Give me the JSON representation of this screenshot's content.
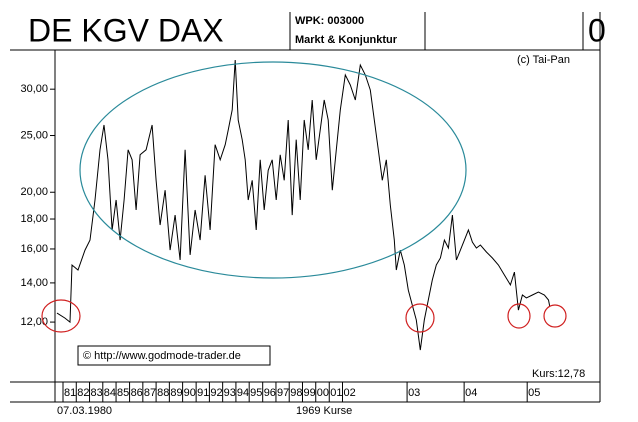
{
  "chart_data": {
    "type": "line",
    "title": "DE KGV DAX",
    "wpk": "WPK: 003000",
    "group": "Markt & Konjunktur",
    "header_fragment": "0",
    "copyright": "(c) Tai-Pan",
    "watermark": "© http://www.godmode-trader.de",
    "last_price": "Kurs:12,78",
    "start_date": "07.03.1980",
    "count_label": "1969 Kurse",
    "color": "#000000",
    "log_scale": true,
    "xlim": [
      0,
      2170
    ],
    "ylim": [
      9.48,
      35.0
    ],
    "yticks": [
      {
        "value": 12,
        "label": "12,00"
      },
      {
        "value": 14,
        "label": "14,00"
      },
      {
        "value": 16,
        "label": "16,00"
      },
      {
        "value": 18,
        "label": "18,00"
      },
      {
        "value": 20,
        "label": "20,00"
      },
      {
        "value": 25,
        "label": "25,00"
      },
      {
        "value": 30,
        "label": "30,00"
      }
    ],
    "xticks": [
      {
        "value": 36,
        "label": "81"
      },
      {
        "value": 89,
        "label": "82"
      },
      {
        "value": 142,
        "label": "83"
      },
      {
        "value": 195,
        "label": "84"
      },
      {
        "value": 248,
        "label": "85"
      },
      {
        "value": 302,
        "label": "86"
      },
      {
        "value": 355,
        "label": "87"
      },
      {
        "value": 408,
        "label": "88"
      },
      {
        "value": 461,
        "label": "89"
      },
      {
        "value": 514,
        "label": "90"
      },
      {
        "value": 568,
        "label": "91"
      },
      {
        "value": 621,
        "label": "92"
      },
      {
        "value": 674,
        "label": "93"
      },
      {
        "value": 727,
        "label": "94"
      },
      {
        "value": 780,
        "label": "95"
      },
      {
        "value": 834,
        "label": "96"
      },
      {
        "value": 887,
        "label": "97"
      },
      {
        "value": 940,
        "label": "98"
      },
      {
        "value": 993,
        "label": "99"
      },
      {
        "value": 1046,
        "label": "00"
      },
      {
        "value": 1100,
        "label": "01"
      },
      {
        "value": 1153,
        "label": "02"
      },
      {
        "value": 1411,
        "label": "03"
      },
      {
        "value": 1639,
        "label": "04"
      },
      {
        "value": 1891,
        "label": "05"
      }
    ],
    "x": [
      0,
      32,
      52,
      60,
      84,
      112,
      132,
      152,
      172,
      188,
      204,
      220,
      236,
      252,
      268,
      284,
      300,
      316,
      332,
      356,
      380,
      396,
      412,
      432,
      452,
      472,
      492,
      512,
      532,
      552,
      572,
      592,
      612,
      632,
      652,
      672,
      684,
      700,
      712,
      724,
      740,
      752,
      764,
      780,
      796,
      812,
      828,
      844,
      860,
      876,
      892,
      908,
      924,
      940,
      956,
      972,
      988,
      1004,
      1020,
      1036,
      1052,
      1068,
      1084,
      1100,
      1116,
      1132,
      1152,
      1172,
      1192,
      1212,
      1232,
      1252,
      1268,
      1284,
      1300,
      1316,
      1332,
      1348,
      1356,
      1372,
      1388,
      1404,
      1420,
      1436,
      1452,
      1468,
      1484,
      1500,
      1516,
      1532,
      1548,
      1564,
      1580,
      1596,
      1612,
      1628,
      1644,
      1660,
      1676,
      1692,
      1716,
      1740,
      1764,
      1788,
      1812,
      1828,
      1844,
      1860,
      1876,
      1900,
      1924,
      1948,
      1964,
      1969
    ],
    "values": [
      12.43,
      12.19,
      12.0,
      15.02,
      14.73,
      15.93,
      16.57,
      19.4,
      23.63,
      26.06,
      22.72,
      17.24,
      19.4,
      16.57,
      19.4,
      23.63,
      22.72,
      18.65,
      23.17,
      23.63,
      26.06,
      20.96,
      17.58,
      20.16,
      15.93,
      18.28,
      15.32,
      23.63,
      15.63,
      18.65,
      16.57,
      21.38,
      17.24,
      24.11,
      22.72,
      24.11,
      25.54,
      27.65,
      33.65,
      26.57,
      24.59,
      22.72,
      19.4,
      20.96,
      17.24,
      22.72,
      18.65,
      21.8,
      22.72,
      19.4,
      23.17,
      20.96,
      26.57,
      18.28,
      24.59,
      19.4,
      26.57,
      23.63,
      28.75,
      22.72,
      25.54,
      28.75,
      26.57,
      20.16,
      23.63,
      27.65,
      31.73,
      30.5,
      28.75,
      33.0,
      31.73,
      29.9,
      26.57,
      23.63,
      20.96,
      22.72,
      19.02,
      16.57,
      14.73,
      15.93,
      15.02,
      13.61,
      12.83,
      12.1,
      10.75,
      12.1,
      13.09,
      14.16,
      15.02,
      15.44,
      16.57,
      16.06,
      18.28,
      15.32,
      15.93,
      16.57,
      17.24,
      16.44,
      16.06,
      16.25,
      15.81,
      15.44,
      15.02,
      14.44,
      13.89,
      14.61,
      12.58,
      13.35,
      13.2,
      13.35,
      13.5,
      13.35,
      13.09,
      12.78
    ]
  }
}
